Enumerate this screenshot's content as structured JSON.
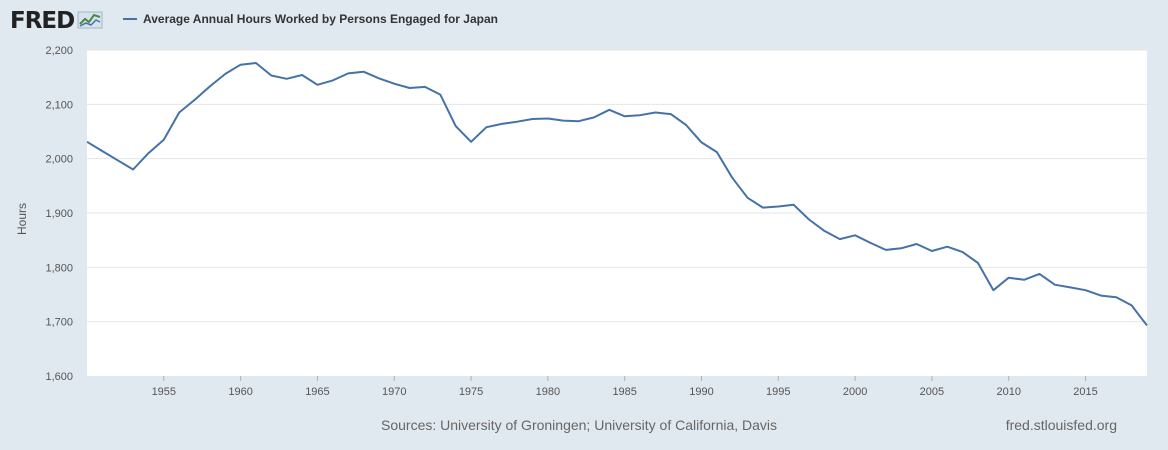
{
  "header": {
    "logo_text": "FRED",
    "logo_icon": "line-chart-icon",
    "legend_label": "Average Annual Hours Worked by Persons Engaged for Japan",
    "series_color": "#4572a7"
  },
  "footer": {
    "sources": "Sources: University of Groningen; University of California, Davis",
    "url": "fred.stlouisfed.org"
  },
  "chart_data": {
    "type": "line",
    "title": "",
    "xlabel": "",
    "ylabel": "Hours",
    "xlim": [
      1950,
      2019
    ],
    "ylim": [
      1600,
      2200
    ],
    "x_ticks": [
      1955,
      1960,
      1965,
      1970,
      1975,
      1980,
      1985,
      1990,
      1995,
      2000,
      2005,
      2010,
      2015
    ],
    "y_ticks": [
      1600,
      1700,
      1800,
      1900,
      2000,
      2100,
      2200
    ],
    "y_tick_labels": [
      "1,600",
      "1,700",
      "1,800",
      "1,900",
      "2,000",
      "2,100",
      "2,200"
    ],
    "grid": true,
    "legend": "top-left",
    "series": [
      {
        "name": "Average Annual Hours Worked by Persons Engaged for Japan",
        "color": "#4572a7",
        "x": [
          1950,
          1951,
          1952,
          1953,
          1954,
          1955,
          1956,
          1957,
          1958,
          1959,
          1960,
          1961,
          1962,
          1963,
          1964,
          1965,
          1966,
          1967,
          1968,
          1969,
          1970,
          1971,
          1972,
          1973,
          1974,
          1975,
          1976,
          1977,
          1978,
          1979,
          1980,
          1981,
          1982,
          1983,
          1984,
          1985,
          1986,
          1987,
          1988,
          1989,
          1990,
          1991,
          1992,
          1993,
          1994,
          1995,
          1996,
          1997,
          1998,
          1999,
          2000,
          2001,
          2002,
          2003,
          2004,
          2005,
          2006,
          2007,
          2008,
          2009,
          2010,
          2011,
          2012,
          2013,
          2014,
          2015,
          2016,
          2017,
          2018,
          2019
        ],
        "values": [
          2031,
          2014,
          1997,
          1980,
          2010,
          2035,
          2085,
          2108,
          2133,
          2156,
          2173,
          2176,
          2153,
          2147,
          2154,
          2136,
          2144,
          2157,
          2160,
          2148,
          2138,
          2130,
          2132,
          2118,
          2060,
          2031,
          2058,
          2064,
          2068,
          2073,
          2074,
          2070,
          2069,
          2076,
          2090,
          2078,
          2080,
          2085,
          2082,
          2062,
          2030,
          2012,
          1965,
          1928,
          1910,
          1912,
          1915,
          1888,
          1867,
          1852,
          1859,
          1845,
          1832,
          1835,
          1843,
          1830,
          1838,
          1828,
          1808,
          1758,
          1781,
          1777,
          1788,
          1768,
          1763,
          1758,
          1748,
          1745,
          1730,
          1693
        ]
      }
    ]
  }
}
